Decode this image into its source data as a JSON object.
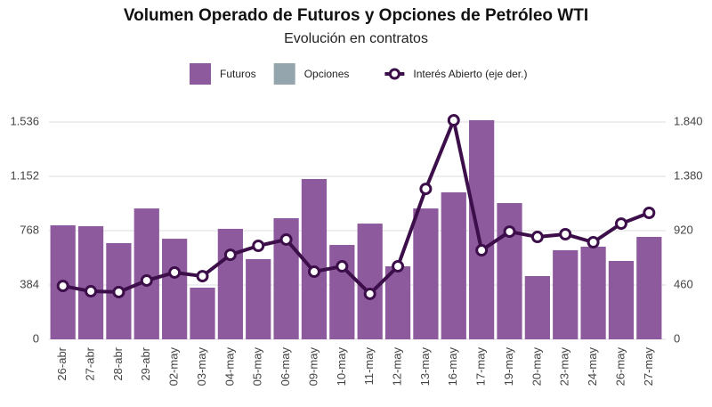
{
  "chart_data": {
    "type": "bar",
    "title": "Volumen Operado de Futuros y Opciones de Petróleo WTI",
    "subtitle": "Evolución en contratos",
    "categories": [
      "26-abr",
      "27-abr",
      "28-abr",
      "29-abr",
      "02-may",
      "03-may",
      "04-may",
      "05-may",
      "06-may",
      "09-may",
      "10-may",
      "11-may",
      "12-may",
      "13-may",
      "16-may",
      "17-may",
      "19-may",
      "20-may",
      "23-may",
      "24-may",
      "26-may",
      "27-may"
    ],
    "series": [
      {
        "name": "Futuros",
        "type": "bar",
        "color": "#8e5a9e",
        "values": [
          806,
          800,
          680,
          925,
          711,
          365,
          781,
          567,
          856,
          1133,
          667,
          818,
          516,
          925,
          1039,
          1549,
          963,
          447,
          630,
          655,
          554,
          724
        ]
      },
      {
        "name": "Opciones",
        "type": "bar",
        "color": "#95a5ad",
        "values": [
          0,
          0,
          0,
          0,
          0,
          0,
          0,
          0,
          0,
          0,
          0,
          0,
          0,
          0,
          0,
          0,
          0,
          0,
          0,
          0,
          0,
          0
        ]
      },
      {
        "name": "Interés Abierto (eje der.)",
        "type": "line",
        "axis": "y2",
        "color": "#3d0f4a",
        "values": [
          452,
          407,
          400,
          498,
          566,
          535,
          716,
          792,
          845,
          573,
          618,
          385,
          618,
          1274,
          1855,
          754,
          912,
          867,
          890,
          822,
          980,
          1071
        ]
      }
    ],
    "ylim": [
      0,
      1570
    ],
    "yticks": [
      0,
      384,
      768,
      {
        "value": 1152,
        "label": "1.152"
      },
      {
        "value": 1536,
        "label": "1.536"
      }
    ],
    "y2lim": [
      0,
      1881
    ],
    "y2ticks": [
      0,
      460,
      920,
      {
        "value": 1380,
        "label": "1.380"
      },
      {
        "value": 1840,
        "label": "1.840"
      }
    ],
    "grid": true,
    "legend": "top"
  }
}
